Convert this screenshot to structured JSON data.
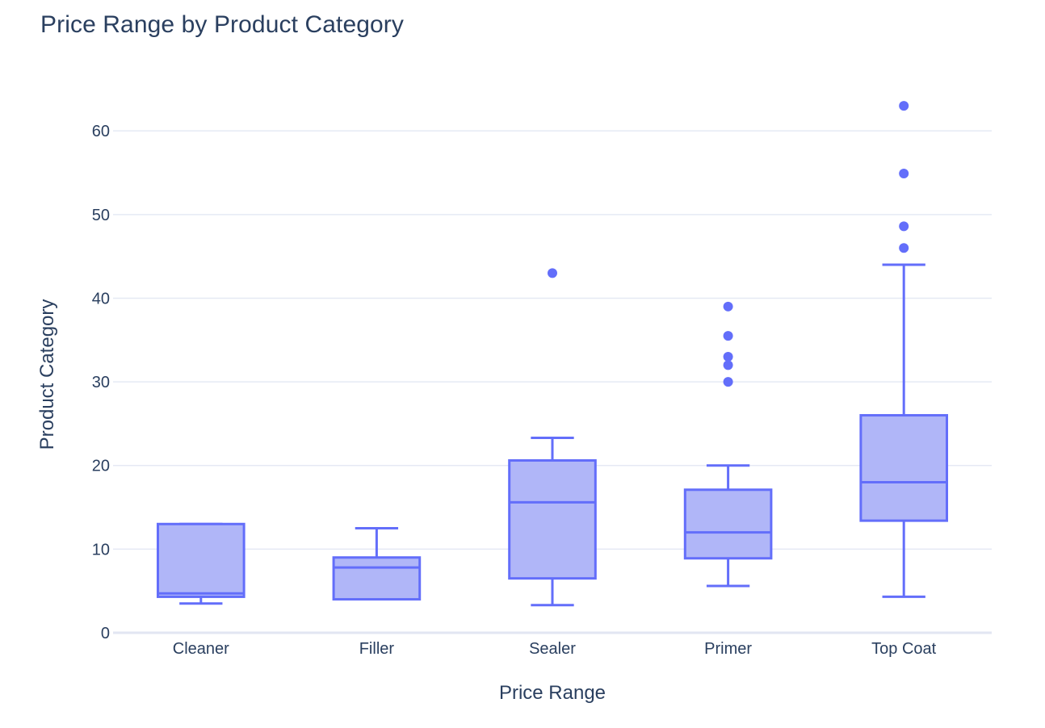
{
  "chart_data": {
    "type": "box",
    "title": "Price Range by Product Category",
    "xlabel": "Price Range",
    "ylabel": "Product Category",
    "ylim": [
      0,
      66
    ],
    "yticks": [
      0,
      10,
      20,
      30,
      40,
      50,
      60
    ],
    "grid": true,
    "colors": {
      "box_line": "#636efa",
      "box_fill": "#b0b6f8",
      "grid": "#e5e9f4",
      "zeroline": "#e2e6f2",
      "text": "#2a3f5f"
    },
    "categories": [
      "Cleaner",
      "Filler",
      "Sealer",
      "Primer",
      "Top Coat"
    ],
    "boxes": [
      {
        "category": "Cleaner",
        "whisker_low": 3.5,
        "q1": 4.3,
        "median": 4.7,
        "q3": 13.0,
        "whisker_high": 13.0,
        "outliers": []
      },
      {
        "category": "Filler",
        "whisker_low": 4.0,
        "q1": 4.0,
        "median": 7.8,
        "q3": 9.0,
        "whisker_high": 12.5,
        "outliers": []
      },
      {
        "category": "Sealer",
        "whisker_low": 3.3,
        "q1": 6.5,
        "median": 15.6,
        "q3": 20.6,
        "whisker_high": 23.3,
        "outliers": [
          43.0
        ]
      },
      {
        "category": "Primer",
        "whisker_low": 5.6,
        "q1": 8.9,
        "median": 12.0,
        "q3": 17.1,
        "whisker_high": 20.0,
        "outliers": [
          30.0,
          32.0,
          33.0,
          35.5,
          39.0
        ]
      },
      {
        "category": "Top Coat",
        "whisker_low": 4.3,
        "q1": 13.4,
        "median": 18.0,
        "q3": 26.0,
        "whisker_high": 44.0,
        "outliers": [
          46.0,
          48.6,
          54.9,
          63.0
        ]
      }
    ]
  }
}
